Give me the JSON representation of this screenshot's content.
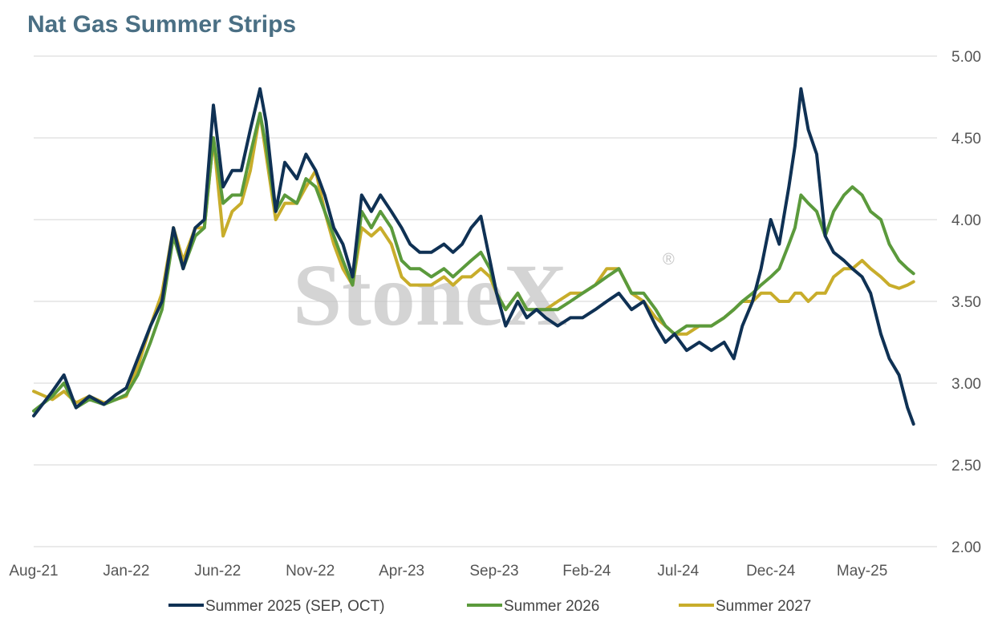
{
  "title": "Nat Gas Summer Strips",
  "watermark": {
    "text": "StoneX",
    "mark": "®"
  },
  "chart_data": {
    "type": "line",
    "title": "Nat Gas Summer Strips",
    "x_axis": {
      "range": [
        "2021-08-01",
        "2025-10-01"
      ],
      "tick_labels": [
        "Aug-21",
        "Jan-22",
        "Jun-22",
        "Nov-22",
        "Apr-23",
        "Sep-23",
        "Feb-24",
        "Jul-24",
        "Dec-24",
        "May-25"
      ],
      "tick_dates": [
        "2021-08-01",
        "2022-01-01",
        "2022-06-01",
        "2022-11-01",
        "2023-04-01",
        "2023-09-01",
        "2024-02-01",
        "2024-07-01",
        "2024-12-01",
        "2025-05-01"
      ]
    },
    "y_axis": {
      "range": [
        2.0,
        5.0
      ],
      "position": "right",
      "tick_values": [
        2.0,
        2.5,
        3.0,
        3.5,
        4.0,
        4.5,
        5.0
      ],
      "tick_labels": [
        "2.00",
        "2.50",
        "3.00",
        "3.50",
        "4.00",
        "4.50",
        "5.00"
      ]
    },
    "grid": "horizontal",
    "legend_position": "bottom",
    "series": [
      {
        "name": "Summer 2025 (SEP, OCT)",
        "color": "#0f3154",
        "points": [
          [
            "2021-08-01",
            2.8
          ],
          [
            "2021-09-01",
            2.95
          ],
          [
            "2021-09-20",
            3.05
          ],
          [
            "2021-10-10",
            2.85
          ],
          [
            "2021-11-01",
            2.92
          ],
          [
            "2021-11-25",
            2.87
          ],
          [
            "2021-12-15",
            2.93
          ],
          [
            "2022-01-01",
            2.97
          ],
          [
            "2022-01-20",
            3.15
          ],
          [
            "2022-02-10",
            3.35
          ],
          [
            "2022-03-01",
            3.5
          ],
          [
            "2022-03-20",
            3.95
          ],
          [
            "2022-04-05",
            3.7
          ],
          [
            "2022-04-25",
            3.95
          ],
          [
            "2022-05-10",
            4.0
          ],
          [
            "2022-05-25",
            4.7
          ],
          [
            "2022-06-10",
            4.2
          ],
          [
            "2022-06-25",
            4.3
          ],
          [
            "2022-07-10",
            4.3
          ],
          [
            "2022-07-25",
            4.55
          ],
          [
            "2022-08-10",
            4.8
          ],
          [
            "2022-08-20",
            4.6
          ],
          [
            "2022-09-05",
            4.05
          ],
          [
            "2022-09-20",
            4.35
          ],
          [
            "2022-10-10",
            4.25
          ],
          [
            "2022-10-25",
            4.4
          ],
          [
            "2022-11-10",
            4.3
          ],
          [
            "2022-11-25",
            4.15
          ],
          [
            "2022-12-10",
            3.95
          ],
          [
            "2022-12-25",
            3.85
          ],
          [
            "2023-01-10",
            3.65
          ],
          [
            "2023-01-25",
            4.15
          ],
          [
            "2023-02-10",
            4.05
          ],
          [
            "2023-02-25",
            4.15
          ],
          [
            "2023-03-15",
            4.05
          ],
          [
            "2023-04-01",
            3.95
          ],
          [
            "2023-04-15",
            3.85
          ],
          [
            "2023-05-01",
            3.8
          ],
          [
            "2023-05-20",
            3.8
          ],
          [
            "2023-06-10",
            3.85
          ],
          [
            "2023-06-25",
            3.8
          ],
          [
            "2023-07-10",
            3.85
          ],
          [
            "2023-07-25",
            3.95
          ],
          [
            "2023-08-10",
            4.02
          ],
          [
            "2023-08-25",
            3.75
          ],
          [
            "2023-09-05",
            3.55
          ],
          [
            "2023-09-20",
            3.35
          ],
          [
            "2023-10-10",
            3.5
          ],
          [
            "2023-10-25",
            3.4
          ],
          [
            "2023-11-10",
            3.45
          ],
          [
            "2023-11-25",
            3.4
          ],
          [
            "2023-12-15",
            3.35
          ],
          [
            "2024-01-05",
            3.4
          ],
          [
            "2024-01-25",
            3.4
          ],
          [
            "2024-02-15",
            3.45
          ],
          [
            "2024-03-05",
            3.5
          ],
          [
            "2024-03-25",
            3.55
          ],
          [
            "2024-04-15",
            3.45
          ],
          [
            "2024-05-05",
            3.5
          ],
          [
            "2024-05-25",
            3.35
          ],
          [
            "2024-06-10",
            3.25
          ],
          [
            "2024-06-25",
            3.3
          ],
          [
            "2024-07-15",
            3.2
          ],
          [
            "2024-08-05",
            3.25
          ],
          [
            "2024-08-25",
            3.2
          ],
          [
            "2024-09-15",
            3.25
          ],
          [
            "2024-10-01",
            3.15
          ],
          [
            "2024-10-15",
            3.35
          ],
          [
            "2024-11-01",
            3.5
          ],
          [
            "2024-11-15",
            3.7
          ],
          [
            "2024-12-01",
            4.0
          ],
          [
            "2024-12-15",
            3.85
          ],
          [
            "2024-12-31",
            4.2
          ],
          [
            "2025-01-10",
            4.45
          ],
          [
            "2025-01-20",
            4.8
          ],
          [
            "2025-02-01",
            4.55
          ],
          [
            "2025-02-15",
            4.4
          ],
          [
            "2025-03-01",
            3.9
          ],
          [
            "2025-03-15",
            3.8
          ],
          [
            "2025-04-01",
            3.75
          ],
          [
            "2025-04-15",
            3.7
          ],
          [
            "2025-05-01",
            3.65
          ],
          [
            "2025-05-15",
            3.55
          ],
          [
            "2025-06-01",
            3.3
          ],
          [
            "2025-06-15",
            3.15
          ],
          [
            "2025-07-01",
            3.05
          ],
          [
            "2025-07-15",
            2.85
          ],
          [
            "2025-07-25",
            2.75
          ]
        ]
      },
      {
        "name": "Summer 2026",
        "color": "#5b9a3c",
        "points": [
          [
            "2021-08-01",
            2.83
          ],
          [
            "2021-09-01",
            2.92
          ],
          [
            "2021-09-20",
            3.0
          ],
          [
            "2021-10-10",
            2.85
          ],
          [
            "2021-11-01",
            2.9
          ],
          [
            "2021-11-25",
            2.87
          ],
          [
            "2021-12-15",
            2.9
          ],
          [
            "2022-01-01",
            2.93
          ],
          [
            "2022-01-20",
            3.05
          ],
          [
            "2022-02-10",
            3.25
          ],
          [
            "2022-03-01",
            3.45
          ],
          [
            "2022-03-20",
            3.9
          ],
          [
            "2022-04-05",
            3.7
          ],
          [
            "2022-04-25",
            3.9
          ],
          [
            "2022-05-10",
            3.95
          ],
          [
            "2022-05-25",
            4.5
          ],
          [
            "2022-06-10",
            4.1
          ],
          [
            "2022-06-25",
            4.15
          ],
          [
            "2022-07-10",
            4.15
          ],
          [
            "2022-07-25",
            4.4
          ],
          [
            "2022-08-10",
            4.65
          ],
          [
            "2022-08-20",
            4.45
          ],
          [
            "2022-09-05",
            4.05
          ],
          [
            "2022-09-20",
            4.15
          ],
          [
            "2022-10-10",
            4.1
          ],
          [
            "2022-10-25",
            4.25
          ],
          [
            "2022-11-10",
            4.2
          ],
          [
            "2022-11-25",
            4.05
          ],
          [
            "2022-12-10",
            3.9
          ],
          [
            "2022-12-25",
            3.75
          ],
          [
            "2023-01-10",
            3.6
          ],
          [
            "2023-01-25",
            4.05
          ],
          [
            "2023-02-10",
            3.95
          ],
          [
            "2023-02-25",
            4.05
          ],
          [
            "2023-03-15",
            3.95
          ],
          [
            "2023-04-01",
            3.75
          ],
          [
            "2023-04-15",
            3.7
          ],
          [
            "2023-05-01",
            3.7
          ],
          [
            "2023-05-20",
            3.65
          ],
          [
            "2023-06-10",
            3.7
          ],
          [
            "2023-06-25",
            3.65
          ],
          [
            "2023-07-10",
            3.7
          ],
          [
            "2023-07-25",
            3.75
          ],
          [
            "2023-08-10",
            3.8
          ],
          [
            "2023-08-25",
            3.7
          ],
          [
            "2023-09-05",
            3.55
          ],
          [
            "2023-09-20",
            3.45
          ],
          [
            "2023-10-10",
            3.55
          ],
          [
            "2023-10-25",
            3.45
          ],
          [
            "2023-11-10",
            3.45
          ],
          [
            "2023-11-25",
            3.45
          ],
          [
            "2023-12-15",
            3.45
          ],
          [
            "2024-01-05",
            3.5
          ],
          [
            "2024-01-25",
            3.55
          ],
          [
            "2024-02-15",
            3.6
          ],
          [
            "2024-03-05",
            3.65
          ],
          [
            "2024-03-25",
            3.7
          ],
          [
            "2024-04-15",
            3.55
          ],
          [
            "2024-05-05",
            3.55
          ],
          [
            "2024-05-25",
            3.45
          ],
          [
            "2024-06-10",
            3.35
          ],
          [
            "2024-06-25",
            3.3
          ],
          [
            "2024-07-15",
            3.35
          ],
          [
            "2024-08-05",
            3.35
          ],
          [
            "2024-08-25",
            3.35
          ],
          [
            "2024-09-15",
            3.4
          ],
          [
            "2024-10-01",
            3.45
          ],
          [
            "2024-10-15",
            3.5
          ],
          [
            "2024-11-01",
            3.55
          ],
          [
            "2024-11-15",
            3.6
          ],
          [
            "2024-12-01",
            3.65
          ],
          [
            "2024-12-15",
            3.7
          ],
          [
            "2024-12-31",
            3.85
          ],
          [
            "2025-01-10",
            3.95
          ],
          [
            "2025-01-20",
            4.15
          ],
          [
            "2025-02-01",
            4.1
          ],
          [
            "2025-02-15",
            4.05
          ],
          [
            "2025-03-01",
            3.9
          ],
          [
            "2025-03-15",
            4.05
          ],
          [
            "2025-04-01",
            4.15
          ],
          [
            "2025-04-15",
            4.2
          ],
          [
            "2025-05-01",
            4.15
          ],
          [
            "2025-05-15",
            4.05
          ],
          [
            "2025-06-01",
            4.0
          ],
          [
            "2025-06-15",
            3.85
          ],
          [
            "2025-07-01",
            3.75
          ],
          [
            "2025-07-15",
            3.7
          ],
          [
            "2025-07-25",
            3.67
          ]
        ]
      },
      {
        "name": "Summer 2027",
        "color": "#c8ad2b",
        "points": [
          [
            "2021-08-01",
            2.95
          ],
          [
            "2021-09-01",
            2.9
          ],
          [
            "2021-09-20",
            2.95
          ],
          [
            "2021-10-10",
            2.88
          ],
          [
            "2021-11-01",
            2.92
          ],
          [
            "2021-11-25",
            2.88
          ],
          [
            "2021-12-15",
            2.9
          ],
          [
            "2022-01-01",
            2.92
          ],
          [
            "2022-01-20",
            3.1
          ],
          [
            "2022-02-10",
            3.35
          ],
          [
            "2022-03-01",
            3.55
          ],
          [
            "2022-03-20",
            3.95
          ],
          [
            "2022-04-05",
            3.75
          ],
          [
            "2022-04-25",
            3.95
          ],
          [
            "2022-05-10",
            3.95
          ],
          [
            "2022-05-25",
            4.5
          ],
          [
            "2022-06-10",
            3.9
          ],
          [
            "2022-06-25",
            4.05
          ],
          [
            "2022-07-10",
            4.1
          ],
          [
            "2022-07-25",
            4.3
          ],
          [
            "2022-08-10",
            4.65
          ],
          [
            "2022-08-20",
            4.4
          ],
          [
            "2022-09-05",
            4.0
          ],
          [
            "2022-09-20",
            4.1
          ],
          [
            "2022-10-10",
            4.1
          ],
          [
            "2022-10-25",
            4.2
          ],
          [
            "2022-11-10",
            4.3
          ],
          [
            "2022-11-25",
            4.05
          ],
          [
            "2022-12-10",
            3.85
          ],
          [
            "2022-12-25",
            3.7
          ],
          [
            "2023-01-10",
            3.6
          ],
          [
            "2023-01-25",
            3.95
          ],
          [
            "2023-02-10",
            3.9
          ],
          [
            "2023-02-25",
            3.95
          ],
          [
            "2023-03-15",
            3.85
          ],
          [
            "2023-04-01",
            3.65
          ],
          [
            "2023-04-15",
            3.6
          ],
          [
            "2023-05-01",
            3.6
          ],
          [
            "2023-05-20",
            3.6
          ],
          [
            "2023-06-10",
            3.65
          ],
          [
            "2023-06-25",
            3.6
          ],
          [
            "2023-07-10",
            3.65
          ],
          [
            "2023-07-25",
            3.65
          ],
          [
            "2023-08-10",
            3.7
          ],
          [
            "2023-08-25",
            3.65
          ],
          [
            "2023-09-05",
            3.55
          ],
          [
            "2023-09-20",
            3.45
          ],
          [
            "2023-10-10",
            3.55
          ],
          [
            "2023-10-25",
            3.45
          ],
          [
            "2023-11-10",
            3.45
          ],
          [
            "2023-11-25",
            3.45
          ],
          [
            "2023-12-15",
            3.5
          ],
          [
            "2024-01-05",
            3.55
          ],
          [
            "2024-01-25",
            3.55
          ],
          [
            "2024-02-15",
            3.6
          ],
          [
            "2024-03-05",
            3.7
          ],
          [
            "2024-03-25",
            3.7
          ],
          [
            "2024-04-15",
            3.55
          ],
          [
            "2024-05-05",
            3.5
          ],
          [
            "2024-05-25",
            3.4
          ],
          [
            "2024-06-10",
            3.35
          ],
          [
            "2024-06-25",
            3.3
          ],
          [
            "2024-07-15",
            3.3
          ],
          [
            "2024-08-05",
            3.35
          ],
          [
            "2024-08-25",
            3.35
          ],
          [
            "2024-09-15",
            3.4
          ],
          [
            "2024-10-01",
            3.45
          ],
          [
            "2024-10-15",
            3.5
          ],
          [
            "2024-11-01",
            3.5
          ],
          [
            "2024-11-15",
            3.55
          ],
          [
            "2024-12-01",
            3.55
          ],
          [
            "2024-12-15",
            3.5
          ],
          [
            "2024-12-31",
            3.5
          ],
          [
            "2025-01-10",
            3.55
          ],
          [
            "2025-01-20",
            3.55
          ],
          [
            "2025-02-01",
            3.5
          ],
          [
            "2025-02-15",
            3.55
          ],
          [
            "2025-03-01",
            3.55
          ],
          [
            "2025-03-15",
            3.65
          ],
          [
            "2025-04-01",
            3.7
          ],
          [
            "2025-04-15",
            3.7
          ],
          [
            "2025-05-01",
            3.75
          ],
          [
            "2025-05-15",
            3.7
          ],
          [
            "2025-06-01",
            3.65
          ],
          [
            "2025-06-15",
            3.6
          ],
          [
            "2025-07-01",
            3.58
          ],
          [
            "2025-07-15",
            3.6
          ],
          [
            "2025-07-25",
            3.62
          ]
        ]
      }
    ]
  }
}
